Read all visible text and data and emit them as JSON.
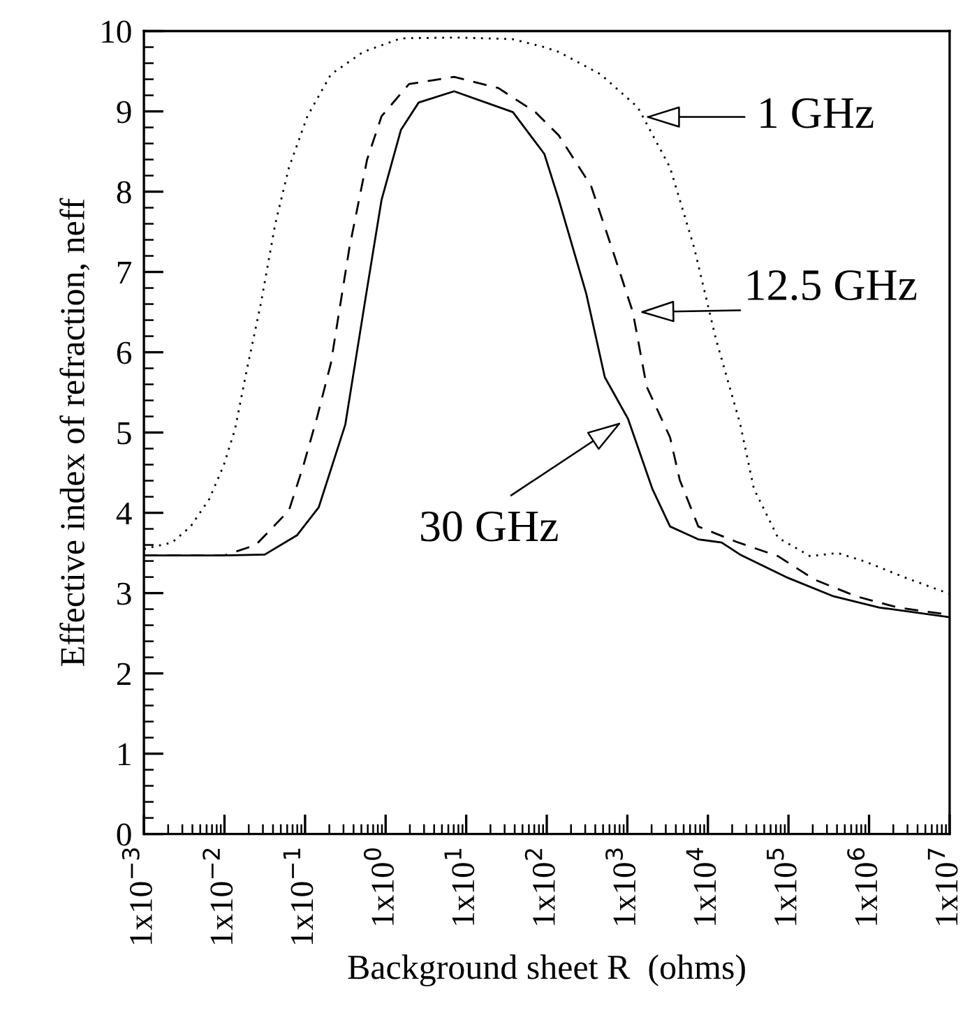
{
  "chart_data": {
    "type": "line",
    "xlabel": "Background sheet R  (ohms)",
    "ylabel": "Effective index of refraction, neff",
    "log": "x",
    "xlim": [
      0.001,
      10000000
    ],
    "ylim": [
      0,
      10
    ],
    "xticks": [
      {
        "value": 0.001,
        "label": "1x10$^{−3}$"
      },
      {
        "value": 0.01,
        "label": "1x10$^{−2}$"
      },
      {
        "value": 0.1,
        "label": "1x10$^{−1}$"
      },
      {
        "value": 1,
        "label": "1x10$^{0}$"
      },
      {
        "value": 10,
        "label": "1x10$^{1}$"
      },
      {
        "value": 100,
        "label": "1x10$^{2}$"
      },
      {
        "value": 1000,
        "label": "1x10$^{3}$"
      },
      {
        "value": 10000,
        "label": "1x10$^{4}$"
      },
      {
        "value": 100000,
        "label": "1x10$^{5}$"
      },
      {
        "value": 1000000,
        "label": "1x10$^{6}$"
      },
      {
        "value": 10000000,
        "label": "1x10$^{7}$"
      }
    ],
    "yticks": [
      0,
      1,
      2,
      3,
      4,
      5,
      6,
      7,
      8,
      9,
      10
    ],
    "grid": false,
    "marker": "none",
    "series": [
      {
        "color": "#000000",
        "line_style": "dotted",
        "x": [
          0.001,
          0.00224,
          0.0038,
          0.00646,
          0.00977,
          0.0135,
          0.0191,
          0.0282,
          0.0427,
          0.0631,
          0.107,
          0.209,
          0.525,
          1.55,
          7.59,
          37.2,
          93.3,
          141,
          468,
          1350,
          3390,
          6760,
          12600,
          25100,
          37200,
          74100,
          186000,
          407000,
          912000,
          2690000,
          10000000
        ],
        "values": [
          3.55,
          3.63,
          3.83,
          4.17,
          4.59,
          5.04,
          5.8,
          6.6,
          7.6,
          8.3,
          8.94,
          9.46,
          9.74,
          9.91,
          9.92,
          9.9,
          9.8,
          9.74,
          9.46,
          9.05,
          8.3,
          7.3,
          6.16,
          5.11,
          4.3,
          3.69,
          3.46,
          3.5,
          3.39,
          3.2,
          2.99
        ]
      },
      {
        "color": "#000000",
        "line_style": "dashed",
        "x": [
          0.001,
          0.01,
          0.0245,
          0.0631,
          0.0955,
          0.141,
          0.209,
          0.355,
          0.589,
          0.891,
          1.95,
          7.08,
          25.1,
          72.4,
          141,
          355,
          692,
          1170,
          1740,
          3390,
          4470,
          7590,
          22400,
          74100,
          209000,
          692000,
          2290000,
          10000000
        ],
        "values": [
          3.47,
          3.47,
          3.6,
          4.03,
          4.59,
          5.19,
          5.86,
          7.3,
          8.4,
          8.94,
          9.34,
          9.43,
          9.29,
          8.99,
          8.7,
          8.07,
          7.2,
          6.5,
          5.57,
          4.94,
          4.41,
          3.83,
          3.64,
          3.46,
          3.17,
          2.96,
          2.82,
          2.73
        ]
      },
      {
        "color": "#000000",
        "line_style": "solid",
        "x": [
          0.001,
          0.01,
          0.0316,
          0.0794,
          0.148,
          0.316,
          0.575,
          0.891,
          1.55,
          2.57,
          7.08,
          38.0,
          93.3,
          141,
          309,
          525,
          1020,
          2040,
          3390,
          7590,
          14800,
          25100,
          93300,
          363000,
          1350000,
          10000000
        ],
        "values": [
          3.47,
          3.47,
          3.48,
          3.72,
          4.07,
          5.1,
          6.73,
          7.9,
          8.77,
          9.11,
          9.25,
          8.99,
          8.47,
          7.9,
          6.73,
          5.69,
          5.17,
          4.3,
          3.83,
          3.67,
          3.63,
          3.48,
          3.2,
          2.96,
          2.82,
          2.7
        ]
      }
    ],
    "annotations": [
      {
        "text": "1 GHz",
        "x": 1660,
        "y": 8.93
      },
      {
        "text": "12.5 GHz",
        "x": 1410,
        "y": 6.5
      },
      {
        "text": "30 GHz",
        "x": 850,
        "y": 5.13
      }
    ]
  }
}
